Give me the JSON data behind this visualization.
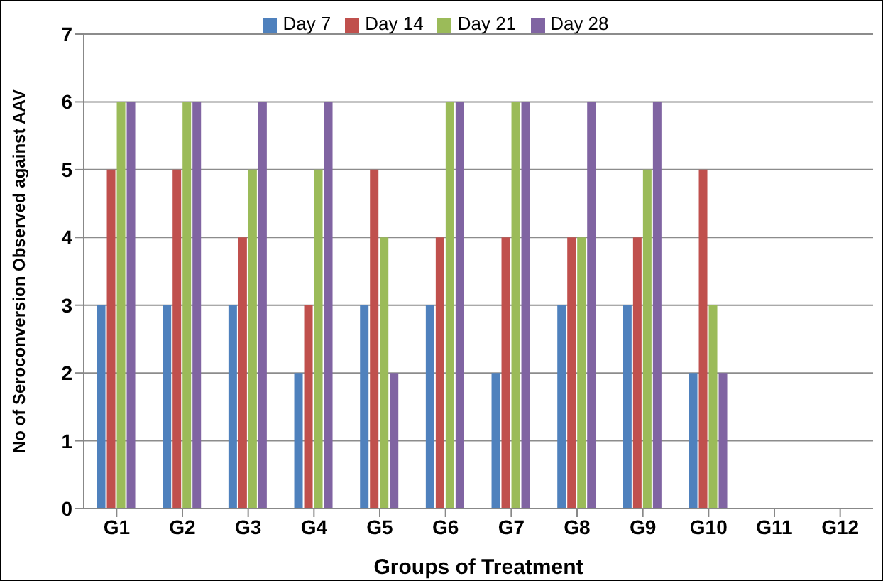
{
  "chart_data": {
    "type": "bar",
    "xlabel": "Groups of Treatment",
    "ylabel": "No of Seroconversion Observed against AAV",
    "categories": [
      "G1",
      "G2",
      "G3",
      "G4",
      "G5",
      "G6",
      "G7",
      "G8",
      "G9",
      "G10",
      "G11",
      "G12"
    ],
    "series": [
      {
        "name": "Day 7",
        "color": "#4f81bd",
        "values": [
          3,
          3,
          3,
          2,
          3,
          3,
          2,
          3,
          3,
          2,
          0,
          0
        ]
      },
      {
        "name": "Day 14",
        "color": "#c0504d",
        "values": [
          5,
          5,
          4,
          3,
          5,
          4,
          4,
          4,
          4,
          5,
          0,
          0
        ]
      },
      {
        "name": "Day 21",
        "color": "#9bbb59",
        "values": [
          6,
          6,
          5,
          5,
          4,
          6,
          6,
          4,
          5,
          3,
          0,
          0
        ]
      },
      {
        "name": "Day 28",
        "color": "#8064a2",
        "values": [
          6,
          6,
          6,
          6,
          2,
          6,
          6,
          6,
          6,
          2,
          0,
          0
        ]
      }
    ],
    "ylim": [
      0,
      7
    ],
    "yticks": [
      0,
      1,
      2,
      3,
      4,
      5,
      6,
      7
    ],
    "grid": "y",
    "legend": "top"
  }
}
